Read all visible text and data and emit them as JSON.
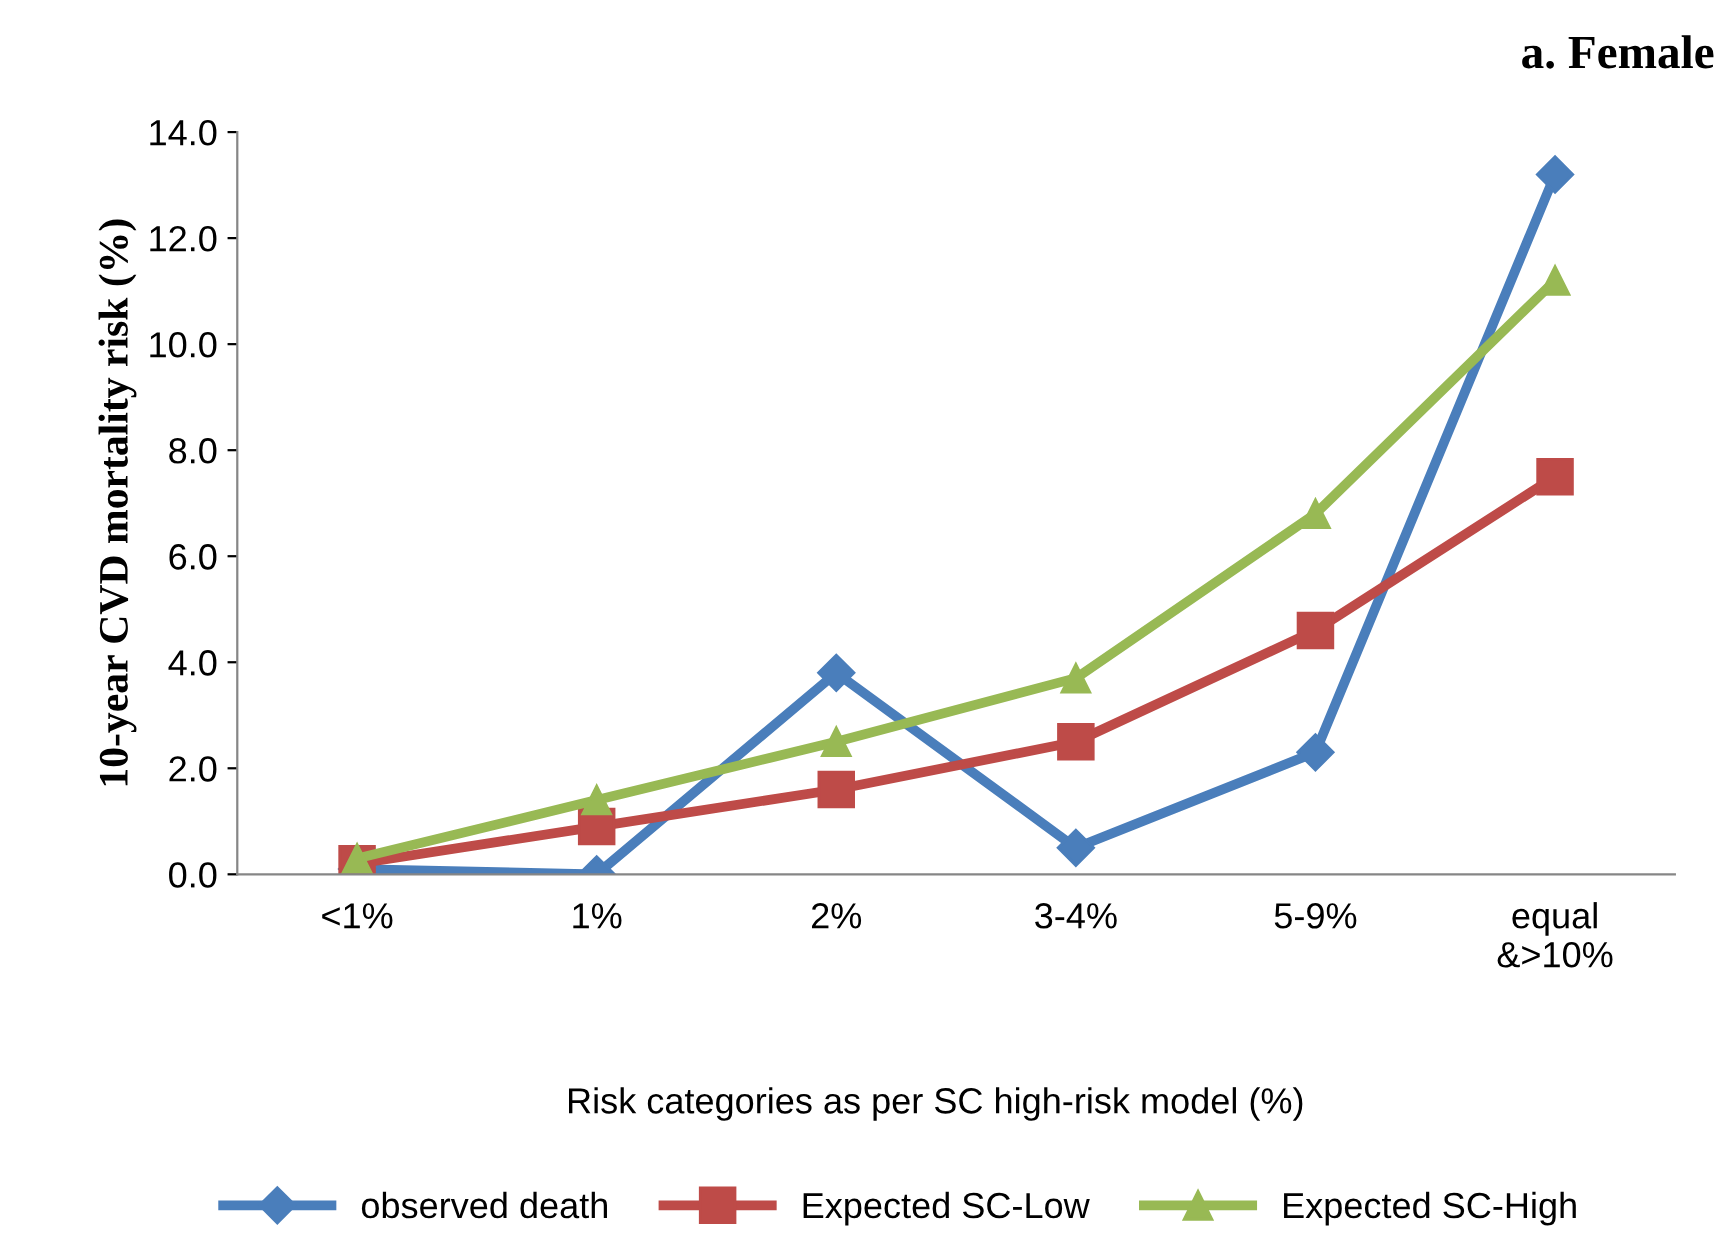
{
  "chart_data": {
    "type": "line",
    "title": "a. Female",
    "xlabel": "Risk categories as per SC high-risk model (%)",
    "ylabel": "10-year CVD mortality risk (%)",
    "categories": [
      "<1%",
      "1%",
      "2%",
      "3-4%",
      "5-9%",
      "equal\n&>10%"
    ],
    "series": [
      {
        "name": "observed death",
        "color": "#4a7ebb",
        "marker": "diamond",
        "values": [
          0.1,
          0.0,
          3.8,
          0.5,
          2.3,
          13.2
        ]
      },
      {
        "name": "Expected SC-Low",
        "color": "#be4b48",
        "marker": "square",
        "values": [
          0.2,
          0.9,
          1.6,
          2.5,
          4.6,
          7.5
        ]
      },
      {
        "name": "Expected SC-High",
        "color": "#98b954",
        "marker": "triangle",
        "values": [
          0.3,
          1.4,
          2.5,
          3.7,
          6.8,
          11.2
        ]
      }
    ],
    "ylim": [
      0,
      14
    ],
    "yticks": [
      {
        "value": 0,
        "label": "0.0"
      },
      {
        "value": 2,
        "label": "2.0"
      },
      {
        "value": 4,
        "label": "4.0"
      },
      {
        "value": 6,
        "label": "6.0"
      },
      {
        "value": 8,
        "label": "8.0"
      },
      {
        "value": 10,
        "label": "10.0"
      },
      {
        "value": 12,
        "label": "12.0"
      },
      {
        "value": 14,
        "label": "14.0"
      }
    ],
    "grid": false,
    "legend": "bottom",
    "line_style": "solid"
  }
}
